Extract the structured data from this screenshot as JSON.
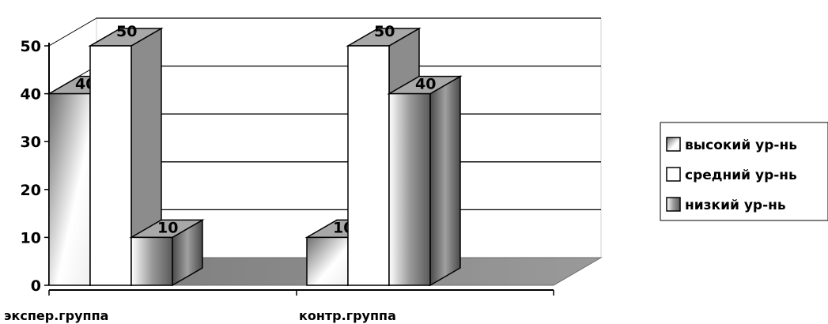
{
  "chart_data": {
    "type": "bar",
    "title": "",
    "xlabel": "",
    "ylabel": "",
    "ylim": [
      0,
      50
    ],
    "y_ticks": [
      0,
      10,
      20,
      30,
      40,
      50
    ],
    "categories": [
      "экспер.группа",
      "контр.группа"
    ],
    "series": [
      {
        "name": "высокий ур-нь",
        "values": [
          40,
          10
        ],
        "style": "gradient"
      },
      {
        "name": "средний ур-нь",
        "values": [
          50,
          50
        ],
        "style": "white"
      },
      {
        "name": "низкий ур-нь",
        "values": [
          10,
          40
        ],
        "style": "cylinder"
      }
    ],
    "data_labels": true,
    "grid": true,
    "legend": "right",
    "colors": {
      "floor": "#8c8c8c",
      "gradient_dark": "#6e6e6e",
      "gradient_light": "#ffffff",
      "side": "#7f7f7f",
      "top": "#a8a8a8"
    }
  }
}
